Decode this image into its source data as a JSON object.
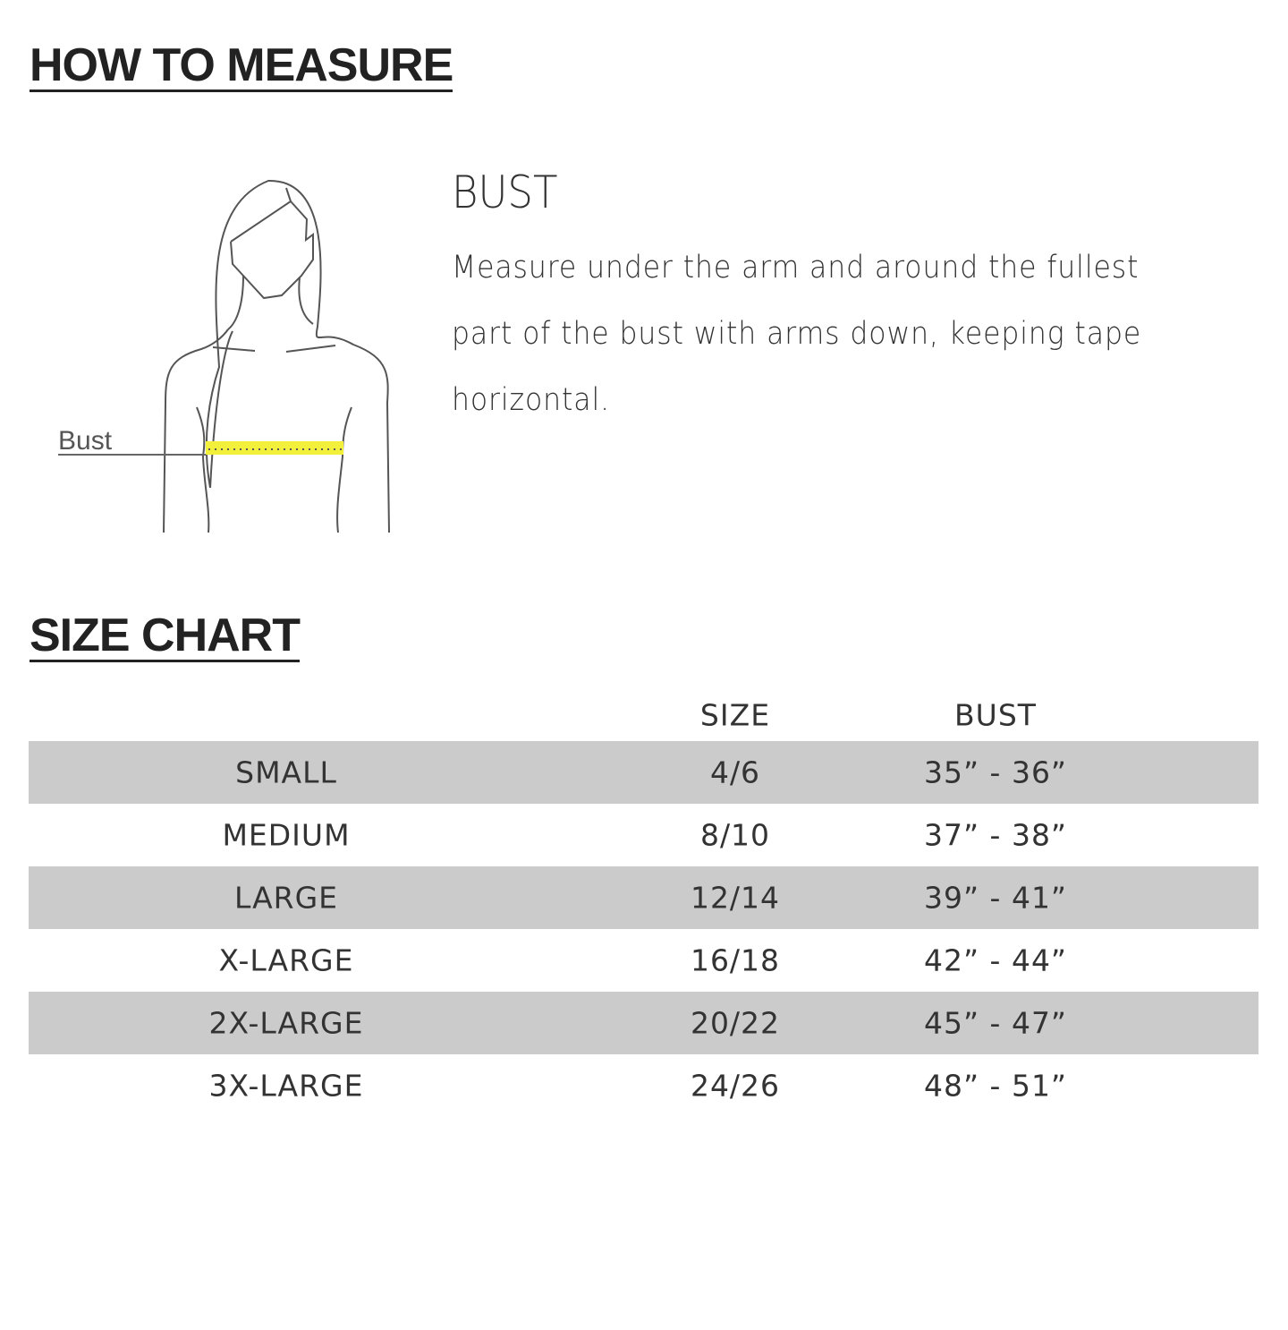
{
  "how_to_measure": {
    "title": "HOW TO MEASURE",
    "figure_label": "Bust",
    "tape_color": "#f2f03a",
    "section_title": "BUST",
    "description": "Measure under the arm and around the fullest part of the bust with arms down, keeping tape horizontal."
  },
  "size_chart": {
    "title": "SIZE CHART",
    "row_shade_color": "#cbcbcb",
    "columns": [
      "",
      "SIZE",
      "BUST"
    ],
    "rows": [
      {
        "label": "SMALL",
        "size": "4/6",
        "bust": "35” - 36”"
      },
      {
        "label": "MEDIUM",
        "size": "8/10",
        "bust": "37” - 38”"
      },
      {
        "label": "LARGE",
        "size": "12/14",
        "bust": "39” - 41”"
      },
      {
        "label": "X-LARGE",
        "size": "16/18",
        "bust": "42” - 44”"
      },
      {
        "label": "2X-LARGE",
        "size": "20/22",
        "bust": "45” - 47”"
      },
      {
        "label": "3X-LARGE",
        "size": "24/26",
        "bust": "48” - 51”"
      }
    ]
  }
}
